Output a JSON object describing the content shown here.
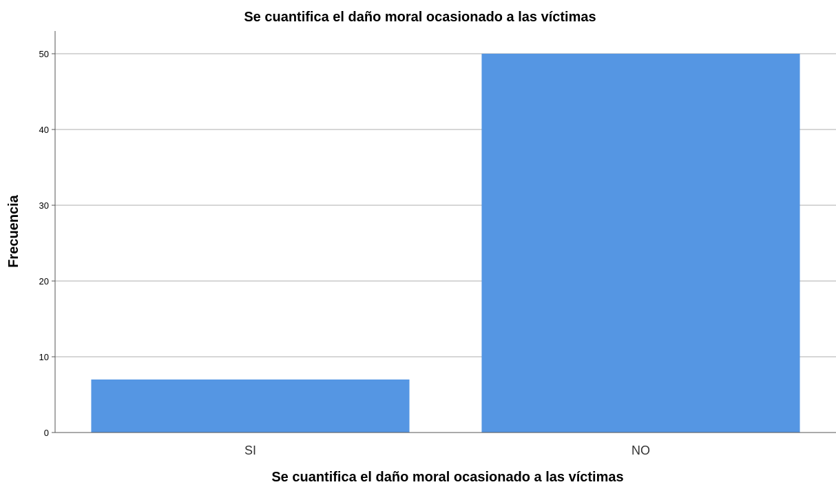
{
  "chart_data": {
    "type": "bar",
    "title": "Se cuantifica el daño moral ocasionado a las víctimas",
    "xlabel": "Se cuantifica el daño moral ocasionado a las víctimas",
    "ylabel": "Frecuencia",
    "categories": [
      "SI",
      "NO"
    ],
    "values": [
      7,
      50
    ],
    "ylim": [
      0,
      53
    ],
    "yticks": [
      0,
      10,
      20,
      30,
      40,
      50
    ],
    "grid": true,
    "bar_color": "#5596E3",
    "grid_color": "#c8c8c8",
    "axis_color": "#555555"
  }
}
